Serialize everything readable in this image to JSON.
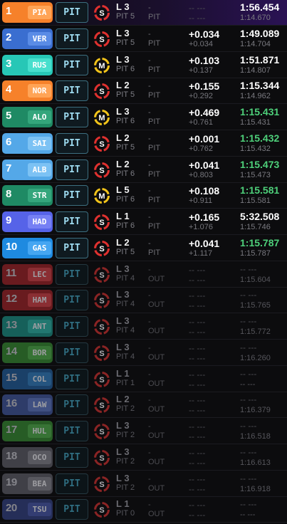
{
  "rows": [
    {
      "pos": "1",
      "tla": "PIA",
      "team_color": "#f6812a",
      "tla_color": "#ffa456",
      "pit_label": "PIT",
      "tyre": "S",
      "tyre_color": "#e0312f",
      "lap": "L 3",
      "pits": "PIT 5",
      "stat_a": "-",
      "stat_b": "PIT",
      "gap": "-- ---",
      "interval": "-- ---",
      "last": "1:56.454",
      "best": "1:14.670",
      "last_pb": false,
      "active": true
    },
    {
      "pos": "2",
      "tla": "VER",
      "team_color": "#3a6ed0",
      "tla_color": "#5a8ce6",
      "pit_label": "PIT",
      "tyre": "S",
      "tyre_color": "#e0312f",
      "lap": "L 3",
      "pits": "PIT 5",
      "stat_a": "-",
      "stat_b": "PIT",
      "gap": "+0.034",
      "interval": "+0.034",
      "last": "1:49.089",
      "best": "1:14.704",
      "last_pb": false,
      "active": true
    },
    {
      "pos": "3",
      "tla": "RUS",
      "team_color": "#27c7b6",
      "tla_color": "#47dfcd",
      "pit_label": "PIT",
      "tyre": "M",
      "tyre_color": "#f1c31a",
      "lap": "L 3",
      "pits": "PIT 6",
      "stat_a": "-",
      "stat_b": "PIT",
      "gap": "+0.103",
      "interval": "+0.137",
      "last": "1:51.871",
      "best": "1:14.807",
      "last_pb": false,
      "active": true
    },
    {
      "pos": "4",
      "tla": "NOR",
      "team_color": "#f6812a",
      "tla_color": "#ffa456",
      "pit_label": "PIT",
      "tyre": "S",
      "tyre_color": "#e0312f",
      "lap": "L 2",
      "pits": "PIT 5",
      "stat_a": "-",
      "stat_b": "PIT",
      "gap": "+0.155",
      "interval": "+0.292",
      "last": "1:15.344",
      "best": "1:14.962",
      "last_pb": false,
      "active": true
    },
    {
      "pos": "5",
      "tla": "ALO",
      "team_color": "#1f8a64",
      "tla_color": "#34a67c",
      "pit_label": "PIT",
      "tyre": "M",
      "tyre_color": "#f1c31a",
      "lap": "L 3",
      "pits": "PIT 6",
      "stat_a": "-",
      "stat_b": "PIT",
      "gap": "+0.469",
      "interval": "+0.761",
      "last": "1:15.431",
      "best": "1:15.431",
      "last_pb": true,
      "active": true
    },
    {
      "pos": "6",
      "tla": "SAI",
      "team_color": "#54a8e8",
      "tla_color": "#7cc2f4",
      "pit_label": "PIT",
      "tyre": "S",
      "tyre_color": "#e0312f",
      "lap": "L 2",
      "pits": "PIT 5",
      "stat_a": "-",
      "stat_b": "PIT",
      "gap": "+0.001",
      "interval": "+0.762",
      "last": "1:15.432",
      "best": "1:15.432",
      "last_pb": true,
      "active": true
    },
    {
      "pos": "7",
      "tla": "ALB",
      "team_color": "#54a8e8",
      "tla_color": "#7cc2f4",
      "pit_label": "PIT",
      "tyre": "S",
      "tyre_color": "#e0312f",
      "lap": "L 2",
      "pits": "PIT 6",
      "stat_a": "-",
      "stat_b": "PIT",
      "gap": "+0.041",
      "interval": "+0.803",
      "last": "1:15.473",
      "best": "1:15.473",
      "last_pb": true,
      "active": true
    },
    {
      "pos": "8",
      "tla": "STR",
      "team_color": "#1f8a64",
      "tla_color": "#34a67c",
      "pit_label": "PIT",
      "tyre": "M",
      "tyre_color": "#f1c31a",
      "lap": "L 5",
      "pits": "PIT 6",
      "stat_a": "-",
      "stat_b": "PIT",
      "gap": "+0.108",
      "interval": "+0.911",
      "last": "1:15.581",
      "best": "1:15.581",
      "last_pb": true,
      "active": true
    },
    {
      "pos": "9",
      "tla": "HAD",
      "team_color": "#5663e8",
      "tla_color": "#7680f4",
      "pit_label": "PIT",
      "tyre": "S",
      "tyre_color": "#e0312f",
      "lap": "L 1",
      "pits": "PIT 6",
      "stat_a": "-",
      "stat_b": "PIT",
      "gap": "+0.165",
      "interval": "+1.076",
      "last": "5:32.508",
      "best": "1:15.746",
      "last_pb": false,
      "active": true
    },
    {
      "pos": "10",
      "tla": "GAS",
      "team_color": "#1e8ae0",
      "tla_color": "#45a6f2",
      "pit_label": "PIT",
      "tyre": "S",
      "tyre_color": "#e0312f",
      "lap": "L 2",
      "pits": "PIT 5",
      "stat_a": "-",
      "stat_b": "PIT",
      "gap": "+0.041",
      "interval": "+1.117",
      "last": "1:15.787",
      "best": "1:15.787",
      "last_pb": true,
      "active": true
    },
    {
      "pos": "11",
      "tla": "LEC",
      "team_color": "#7a1e22",
      "tla_color": "#a0343a",
      "pit_label": "PIT",
      "tyre": "S",
      "tyre_color": "#8a2424",
      "lap": "L 3",
      "pits": "PIT 4",
      "stat_a": "-",
      "stat_b": "OUT",
      "gap": "-- ---",
      "interval": "-- ---",
      "last": "-- ---",
      "best": "1:15.604",
      "last_pb": false,
      "active": false
    },
    {
      "pos": "12",
      "tla": "HAM",
      "team_color": "#7a1e22",
      "tla_color": "#a0343a",
      "pit_label": "PIT",
      "tyre": "S",
      "tyre_color": "#8a2424",
      "lap": "L 3",
      "pits": "PIT 4",
      "stat_a": "-",
      "stat_b": "OUT",
      "gap": "-- ---",
      "interval": "-- ---",
      "last": "-- ---",
      "best": "1:15.765",
      "last_pb": false,
      "active": false
    },
    {
      "pos": "13",
      "tla": "ANT",
      "team_color": "#186f68",
      "tla_color": "#268a82",
      "pit_label": "PIT",
      "tyre": "S",
      "tyre_color": "#8a2424",
      "lap": "L 3",
      "pits": "PIT 4",
      "stat_a": "-",
      "stat_b": "OUT",
      "gap": "-- ---",
      "interval": "-- ---",
      "last": "-- ---",
      "best": "1:15.772",
      "last_pb": false,
      "active": false
    },
    {
      "pos": "14",
      "tla": "BOR",
      "team_color": "#2c6a2a",
      "tla_color": "#3f863c",
      "pit_label": "PIT",
      "tyre": "S",
      "tyre_color": "#8a2424",
      "lap": "L 3",
      "pits": "PIT 4",
      "stat_a": "-",
      "stat_b": "OUT",
      "gap": "-- ---",
      "interval": "-- ---",
      "last": "-- ---",
      "best": "1:16.260",
      "last_pb": false,
      "active": false
    },
    {
      "pos": "15",
      "tla": "COL",
      "team_color": "#1d4a78",
      "tla_color": "#2a6294",
      "pit_label": "PIT",
      "tyre": "S",
      "tyre_color": "#8a2424",
      "lap": "L 1",
      "pits": "PIT 1",
      "stat_a": "-",
      "stat_b": "OUT",
      "gap": "-- ---",
      "interval": "-- ---",
      "last": "-- ---",
      "best": "-- ---",
      "last_pb": false,
      "active": false
    },
    {
      "pos": "16",
      "tla": "LAW",
      "team_color": "#35457a",
      "tla_color": "#4a5d96",
      "pit_label": "PIT",
      "tyre": "S",
      "tyre_color": "#8a2424",
      "lap": "L 2",
      "pits": "PIT 2",
      "stat_a": "-",
      "stat_b": "OUT",
      "gap": "-- ---",
      "interval": "-- ---",
      "last": "-- ---",
      "best": "1:16.379",
      "last_pb": false,
      "active": false
    },
    {
      "pos": "17",
      "tla": "HUL",
      "team_color": "#2c6a2a",
      "tla_color": "#3f863c",
      "pit_label": "PIT",
      "tyre": "S",
      "tyre_color": "#8a2424",
      "lap": "L 3",
      "pits": "PIT 2",
      "stat_a": "-",
      "stat_b": "OUT",
      "gap": "-- ---",
      "interval": "-- ---",
      "last": "-- ---",
      "best": "1:16.518",
      "last_pb": false,
      "active": false
    },
    {
      "pos": "18",
      "tla": "OCO",
      "team_color": "#4a4a52",
      "tla_color": "#66666e",
      "pit_label": "PIT",
      "tyre": "S",
      "tyre_color": "#8a2424",
      "lap": "L 3",
      "pits": "PIT 2",
      "stat_a": "-",
      "stat_b": "OUT",
      "gap": "-- ---",
      "interval": "-- ---",
      "last": "-- ---",
      "best": "1:16.613",
      "last_pb": false,
      "active": false
    },
    {
      "pos": "19",
      "tla": "BEA",
      "team_color": "#4a4a52",
      "tla_color": "#66666e",
      "pit_label": "PIT",
      "tyre": "S",
      "tyre_color": "#8a2424",
      "lap": "L 3",
      "pits": "PIT 2",
      "stat_a": "-",
      "stat_b": "OUT",
      "gap": "-- ---",
      "interval": "-- ---",
      "last": "-- ---",
      "best": "1:16.918",
      "last_pb": false,
      "active": false
    },
    {
      "pos": "20",
      "tla": "TSU",
      "team_color": "#2a3466",
      "tla_color": "#3a4684",
      "pit_label": "PIT",
      "tyre": "S",
      "tyre_color": "#8a2424",
      "lap": "L 1",
      "pits": "PIT 0",
      "stat_a": "-",
      "stat_b": "OUT",
      "gap": "-- ---",
      "interval": "-- ---",
      "last": "-- ---",
      "best": "-- ---",
      "last_pb": false,
      "active": false
    }
  ]
}
